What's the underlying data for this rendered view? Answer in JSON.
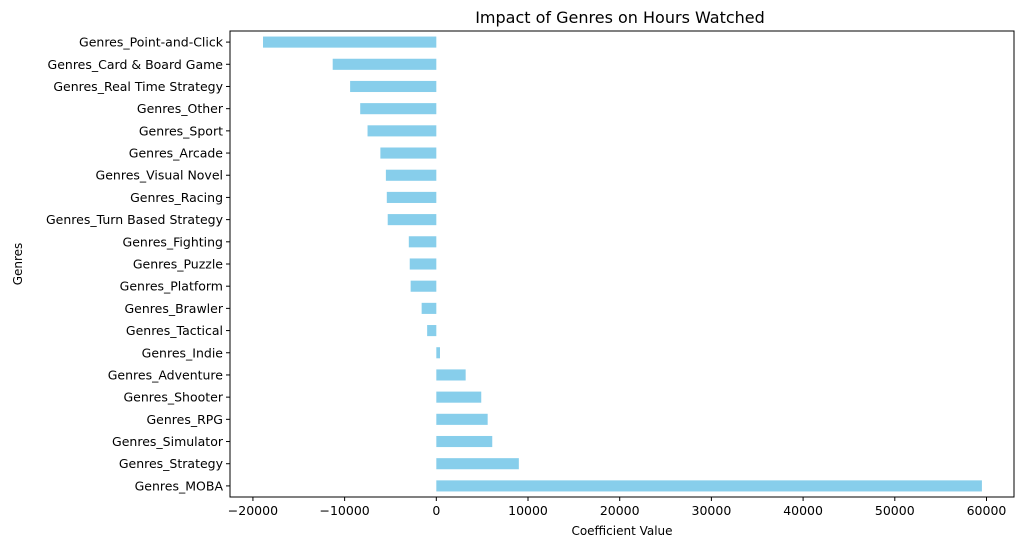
{
  "chart_data": {
    "type": "bar",
    "orientation": "horizontal",
    "title": "Impact of Genres on Hours Watched",
    "xlabel": "Coefficient Value",
    "ylabel": "Genres",
    "xlim": [
      -22500,
      63000
    ],
    "xticks": [
      -20000,
      -10000,
      0,
      10000,
      20000,
      30000,
      40000,
      50000,
      60000
    ],
    "xtick_labels": [
      "−20000",
      "−10000",
      "0",
      "10000",
      "20000",
      "30000",
      "40000",
      "50000",
      "60000"
    ],
    "grid": false,
    "legend": "none",
    "bar_color": "#87ceeb",
    "categories": [
      "Genres_Point-and-Click",
      "Genres_Card & Board Game",
      "Genres_Real Time Strategy",
      "Genres_Other",
      "Genres_Sport",
      "Genres_Arcade",
      "Genres_Visual Novel",
      "Genres_Racing",
      "Genres_Turn Based Strategy",
      "Genres_Fighting",
      "Genres_Puzzle",
      "Genres_Platform",
      "Genres_Brawler",
      "Genres_Tactical",
      "Genres_Indie",
      "Genres_Adventure",
      "Genres_Shooter",
      "Genres_RPG",
      "Genres_Simulator",
      "Genres_Strategy",
      "Genres_MOBA"
    ],
    "values": [
      -18900,
      -11300,
      -9400,
      -8300,
      -7500,
      -6100,
      -5500,
      -5400,
      -5300,
      -3000,
      -2900,
      -2800,
      -1600,
      -1000,
      400,
      3200,
      4900,
      5600,
      6100,
      9000,
      59500
    ]
  }
}
